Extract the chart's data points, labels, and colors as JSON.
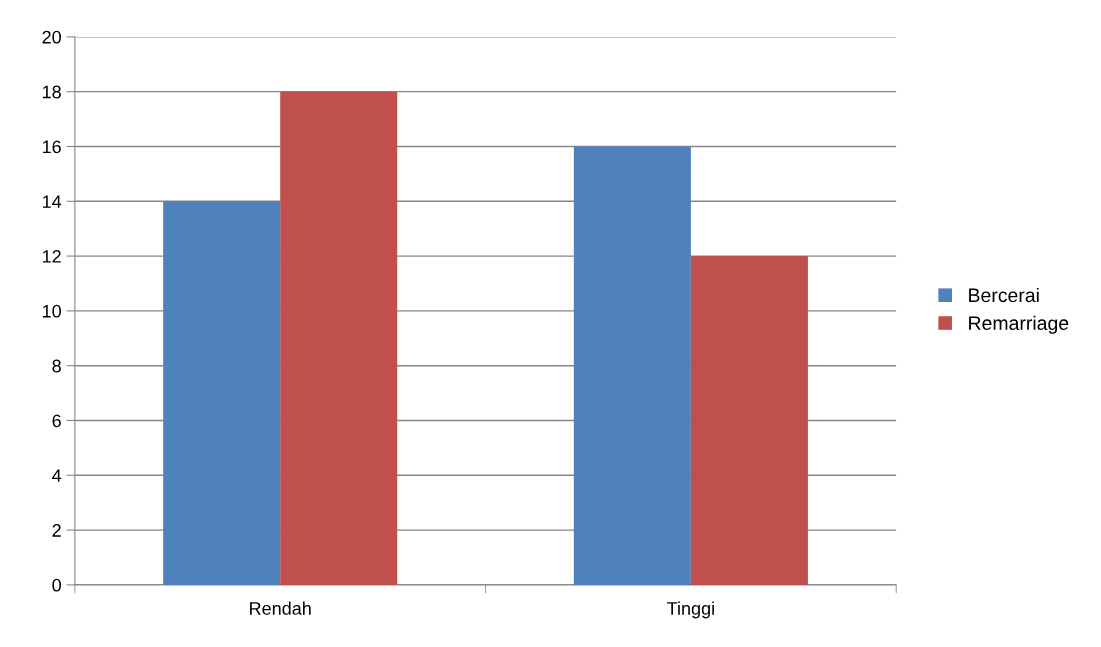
{
  "chart_data": {
    "type": "bar",
    "categories": [
      "Rendah",
      "Tinggi"
    ],
    "series": [
      {
        "name": "Bercerai",
        "color": "#4f81bd",
        "values": [
          14,
          16
        ]
      },
      {
        "name": "Remarriage",
        "color": "#c0504d",
        "values": [
          18,
          12
        ]
      }
    ],
    "ylim": [
      0,
      20
    ],
    "yticks": [
      0,
      2,
      4,
      6,
      8,
      10,
      12,
      14,
      16,
      18,
      20
    ],
    "grid": "y",
    "legend": "right"
  }
}
